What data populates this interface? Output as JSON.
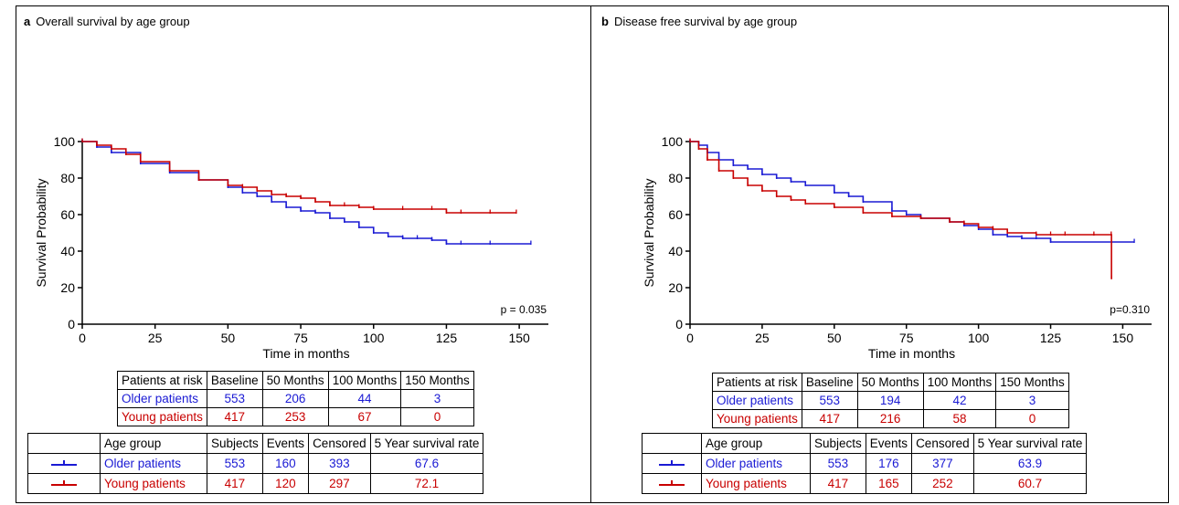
{
  "colors": {
    "older": "#1a1ad4",
    "young": "#c80000"
  },
  "panels": [
    {
      "letter": "a",
      "title": "Overall survival by age group",
      "pvalue": "p = 0.035",
      "risk_table": {
        "headers": [
          "Patients at risk",
          "Baseline",
          "50 Months",
          "100 Months",
          "150 Months"
        ],
        "rows": [
          {
            "label": "Older patients",
            "values": [
              "553",
              "206",
              "44",
              "3"
            ]
          },
          {
            "label": "Young patients",
            "values": [
              "417",
              "253",
              "67",
              "0"
            ]
          }
        ]
      },
      "summary_table": {
        "headers": [
          "Age group",
          "Subjects",
          "Events",
          "Censored",
          "5 Year survival rate"
        ],
        "rows": [
          {
            "label": "Older patients",
            "values": [
              "553",
              "160",
              "393",
              "67.6"
            ]
          },
          {
            "label": "Young patients",
            "values": [
              "417",
              "120",
              "297",
              "72.1"
            ]
          }
        ]
      }
    },
    {
      "letter": "b",
      "title": "Disease free survival by age group",
      "pvalue": "p=0.310",
      "risk_table": {
        "headers": [
          "Patients at risk",
          "Baseline",
          "50 Months",
          "100 Months",
          "150 Months"
        ],
        "rows": [
          {
            "label": "Older patients",
            "values": [
              "553",
              "194",
              "42",
              "3"
            ]
          },
          {
            "label": "Young patients",
            "values": [
              "417",
              "216",
              "58",
              "0"
            ]
          }
        ]
      },
      "summary_table": {
        "headers": [
          "Age group",
          "Subjects",
          "Events",
          "Censored",
          "5 Year survival rate"
        ],
        "rows": [
          {
            "label": "Older patients",
            "values": [
              "553",
              "176",
              "377",
              "63.9"
            ]
          },
          {
            "label": "Young patients",
            "values": [
              "417",
              "165",
              "252",
              "60.7"
            ]
          }
        ]
      }
    }
  ],
  "chart_data": [
    {
      "type": "line",
      "title": "Overall survival by age group",
      "xlabel": "Time in months",
      "ylabel": "Survival Probability",
      "xlim": [
        0,
        160
      ],
      "ylim": [
        0,
        100
      ],
      "xticks": [
        0,
        25,
        50,
        75,
        100,
        125,
        150
      ],
      "yticks": [
        0,
        20,
        40,
        60,
        80,
        100
      ],
      "annotation": "p = 0.035",
      "series": [
        {
          "name": "Older patients",
          "x": [
            0,
            5,
            10,
            20,
            30,
            40,
            50,
            55,
            60,
            65,
            70,
            75,
            80,
            85,
            90,
            95,
            100,
            105,
            110,
            115,
            120,
            125,
            130,
            140,
            154
          ],
          "y": [
            100,
            97,
            94,
            88,
            83,
            79,
            75,
            72,
            70,
            67,
            64,
            62,
            61,
            58,
            56,
            53,
            50,
            48,
            47,
            47,
            46,
            44,
            44,
            44,
            44
          ]
        },
        {
          "name": "Young patients",
          "x": [
            0,
            5,
            10,
            15,
            20,
            30,
            40,
            50,
            55,
            60,
            65,
            70,
            75,
            80,
            85,
            90,
            95,
            100,
            110,
            120,
            125,
            130,
            140,
            149
          ],
          "y": [
            100,
            98,
            96,
            93,
            89,
            84,
            79,
            76,
            75,
            73,
            71,
            70,
            69,
            67,
            65,
            65,
            64,
            63,
            63,
            63,
            61,
            61,
            61,
            61
          ]
        }
      ]
    },
    {
      "type": "line",
      "title": "Disease free survival by age group",
      "xlabel": "Time in months",
      "ylabel": "Survival Probability",
      "xlim": [
        0,
        160
      ],
      "ylim": [
        0,
        100
      ],
      "xticks": [
        0,
        25,
        50,
        75,
        100,
        125,
        150
      ],
      "yticks": [
        0,
        20,
        40,
        60,
        80,
        100
      ],
      "annotation": "p=0.310",
      "series": [
        {
          "name": "Older patients",
          "x": [
            0,
            3,
            6,
            10,
            15,
            20,
            25,
            30,
            35,
            40,
            50,
            55,
            60,
            70,
            75,
            80,
            90,
            95,
            100,
            105,
            110,
            115,
            120,
            125,
            154
          ],
          "y": [
            100,
            98,
            94,
            90,
            87,
            85,
            82,
            80,
            78,
            76,
            72,
            70,
            67,
            62,
            60,
            58,
            56,
            54,
            52,
            49,
            48,
            47,
            47,
            45,
            45
          ]
        },
        {
          "name": "Young patients",
          "x": [
            0,
            3,
            6,
            10,
            15,
            20,
            25,
            30,
            35,
            40,
            50,
            60,
            70,
            80,
            90,
            95,
            100,
            105,
            110,
            120,
            125,
            130,
            140,
            146,
            146.1
          ],
          "y": [
            100,
            96,
            90,
            84,
            80,
            76,
            73,
            70,
            68,
            66,
            64,
            61,
            59,
            58,
            56,
            55,
            53,
            52,
            50,
            49,
            49,
            49,
            49,
            49,
            25
          ]
        }
      ]
    }
  ]
}
